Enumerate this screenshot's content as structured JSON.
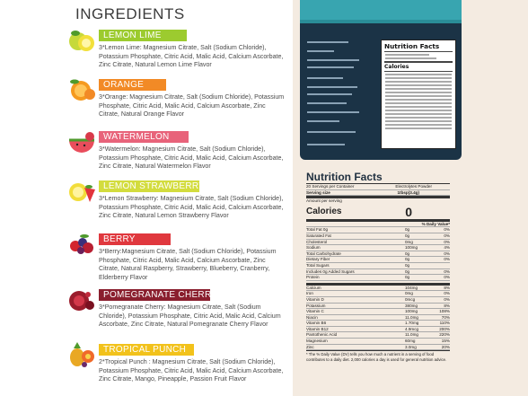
{
  "heading": "INGREDIENTS",
  "flavors": [
    {
      "name": "LEMON LIME",
      "color": "#9ccb2f",
      "desc": "3*Lemon Lime: Magnesium Citrate, Salt (Sodium Chloride), Potassium Phosphate, Citric Acid, Malic Acid, Calcium Ascorbate, Zinc Citrate, Natural Lemon Lime Flavor"
    },
    {
      "name": "ORANGE",
      "color": "#f28a26",
      "desc": "3*Orange: Magnesium Citrate, Salt (Sodium Chloride), Potassium Phosphate, Citric Acid, Malic Acid, Calcium Ascorbate, Zinc Citrate, Natural Orange Flavor"
    },
    {
      "name": "WATERMELON",
      "color": "#e8637a",
      "desc": "3*Watermelon: Magnesium Citrate, Salt (Sodium Chloride), Potassium Phosphate, Citric Acid, Malic Acid, Calcium Ascorbate, Zinc Citrate, Natural Watermelon Flavor"
    },
    {
      "name": "LEMON STRAWBERRY",
      "color": "#d3dc3e",
      "desc": "3*Lemon Strawberry: Magnesium Citrate, Salt (Sodium Chloride), Potassium Phosphate, Citric Acid, Malic Acid, Calcium Ascorbate, Zinc Citrate, Natural Lemon Strawberry Flavor"
    },
    {
      "name": "BERRY",
      "color": "#e0383e",
      "desc": "3*Berry:Magnesium Citrate, Salt (Sodium Chloride), Potassium Phosphate, Citric Acid, Malic Acid, Calcium Ascorbate, Zinc Citrate, Natural Raspberry, Strawberry, Blueberry, Cranberry, Elderberry Flavor"
    },
    {
      "name": "POMEGRANATE CHERRY",
      "color": "#8a1f2e",
      "desc": "3*Pomegranate Cherry: Magnesium Citrate, Salt (Sodium Chloride), Potassium Phosphate, Citric Acid, Malic Acid, Calcium Ascorbate, Zinc Citrate, Natural Pomegranate Cherry Flavor"
    },
    {
      "name": "TROPICAL PUNCH",
      "color": "#f2c21b",
      "desc": "2*Tropical Punch : Magnesium Citrate, Salt (Sodium Chloride), Potassium Phosphate, Citric Acid, Malic Acid, Calcium Ascorbate, Zinc Citrate, Mango, Pineapple, Passion Fruit Flavor"
    }
  ],
  "bag_panel": {
    "title": "Nutrition Facts",
    "calories": "Calories"
  },
  "nutrition": {
    "title": "Nutrition Facts",
    "servings_label": "20 Servings per Container",
    "servings_value": "Electrolytes Powder",
    "serving_size_label": "Serving size",
    "serving_size_value": "1tbsp(3.4g)",
    "amount_label": "Amount per serving",
    "calories_label": "Calories",
    "calories_value": "0",
    "dv_header": "% Daily Value*",
    "rows": [
      {
        "n": "Total Fat 0g",
        "a": "0g",
        "d": "0%"
      },
      {
        "n": "Saturated Fat",
        "a": "0g",
        "d": "0%"
      },
      {
        "n": "Cholesterol",
        "a": "0mg",
        "d": "0%"
      },
      {
        "n": "Sodium",
        "a": "100mg",
        "d": "4%"
      },
      {
        "n": "Total Carbohydrate",
        "a": "0g",
        "d": "0%"
      },
      {
        "n": "Dietary Fiber",
        "a": "0g",
        "d": "0%"
      },
      {
        "n": "Total Sugars",
        "a": "0g",
        "d": ""
      },
      {
        "n": "Includes 0g Added Sugars",
        "a": "0g",
        "d": "0%"
      },
      {
        "n": "Protein",
        "a": "0g",
        "d": "0%"
      }
    ],
    "rows2": [
      {
        "n": "Calcium",
        "a": "104mg",
        "d": "8%"
      },
      {
        "n": "Iron",
        "a": "0mg",
        "d": "0%"
      },
      {
        "n": "Vitamin D",
        "a": "0mcg",
        "d": "0%"
      },
      {
        "n": "Potassium",
        "a": "380mg",
        "d": "8%"
      },
      {
        "n": "Vitamin C",
        "a": "100mg",
        "d": "108%"
      },
      {
        "n": "Niacin",
        "a": "11.0mg",
        "d": "70%"
      },
      {
        "n": "Vitamin B6",
        "a": "1.70mg",
        "d": "110%"
      },
      {
        "n": "Vitamin B12",
        "a": "4.9mcg",
        "d": "200%"
      },
      {
        "n": "Pantothenic Acid",
        "a": "11.0mg",
        "d": "220%"
      },
      {
        "n": "Magnesium",
        "a": "60mg",
        "d": "15%"
      },
      {
        "n": "Zinc",
        "a": "3.0mg",
        "d": "20%"
      }
    ],
    "footnote": "* The % Daily Value (DV) tells you how much a nutrient in a serving of food contributes to a daily diet. 2,000 calories a day is used for general nutrition advice."
  }
}
